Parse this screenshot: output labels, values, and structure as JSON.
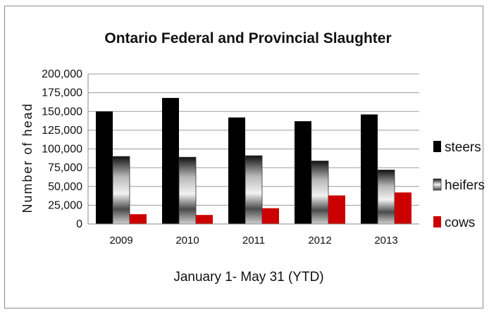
{
  "chart_data": {
    "type": "bar",
    "title": "Ontario Federal and Provincial Slaughter",
    "xlabel": "January 1- May 31 (YTD)",
    "ylabel": "Number of head",
    "categories": [
      "2009",
      "2010",
      "2011",
      "2012",
      "2013"
    ],
    "ylim": [
      0,
      200000
    ],
    "yticks": [
      0,
      25000,
      50000,
      75000,
      100000,
      125000,
      150000,
      175000,
      200000
    ],
    "ytick_labels": [
      "0",
      "25,000",
      "50,000",
      "75,000",
      "100,000",
      "125,000",
      "150,000",
      "175,000",
      "200,000"
    ],
    "grid": true,
    "legend_position": "right",
    "series": [
      {
        "name": "steers",
        "values": [
          150000,
          168000,
          142000,
          137000,
          146000
        ],
        "color": "#000000"
      },
      {
        "name": "heifers",
        "values": [
          90000,
          89000,
          91000,
          84000,
          72000
        ],
        "color": "#808080"
      },
      {
        "name": "cows",
        "values": [
          13000,
          12000,
          21000,
          38000,
          42000
        ],
        "color": "#cc0000"
      }
    ]
  }
}
